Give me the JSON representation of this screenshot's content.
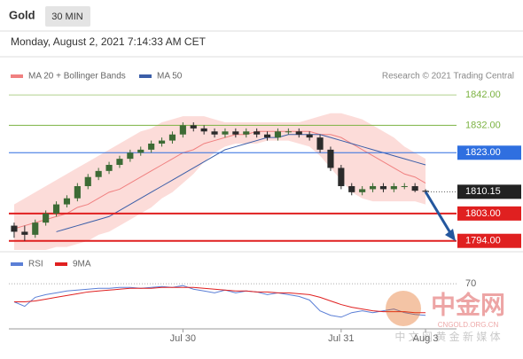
{
  "chart_data": {
    "type": "candlestick",
    "title": "Gold",
    "timeframe": "30 MIN",
    "subtitle": "Monday, August 2, 2021 7:14:33 AM CET",
    "credit": "Research © 2021 Trading Central",
    "watermark": [
      "中金网",
      "CNGOLD.ORG.CN",
      "中 文 网 黄 金 新 媒 体"
    ],
    "up_color": "#3d6b35",
    "down_color": "#2b2b2b",
    "categories": [
      null,
      null,
      null,
      null,
      null,
      null,
      null,
      null,
      null,
      null,
      null,
      null,
      null,
      null,
      null,
      null,
      "Jul 30",
      null,
      null,
      null,
      null,
      null,
      null,
      null,
      null,
      null,
      null,
      null,
      null,
      null,
      null,
      "Jul 31",
      null,
      null,
      null,
      null,
      null,
      null,
      null,
      "Aug 3"
    ],
    "open": [
      1799,
      1797,
      1796,
      1800,
      1803,
      1806,
      1808,
      1812,
      1815,
      1817,
      1819,
      1821,
      1823,
      1824,
      1826,
      1827,
      1829,
      1832,
      1831,
      1830,
      1829,
      1830,
      1829,
      1830,
      1829,
      1828,
      1830,
      1830,
      1829,
      1828,
      1824,
      1818,
      1812,
      1810,
      1811,
      1812,
      1811,
      1812,
      1812,
      1810.5
    ],
    "high": [
      1800,
      1799,
      1801,
      1804,
      1807,
      1809,
      1813,
      1816,
      1818,
      1820,
      1822,
      1824,
      1825,
      1827,
      1828,
      1830,
      1833,
      1833,
      1832,
      1831,
      1831,
      1831,
      1831,
      1831,
      1830,
      1831,
      1831,
      1831,
      1830,
      1829,
      1825,
      1819,
      1813,
      1812,
      1813,
      1813,
      1813,
      1813,
      1813,
      1811
    ],
    "low": [
      1795,
      1794,
      1795,
      1799,
      1802,
      1805,
      1807,
      1811,
      1814,
      1816,
      1818,
      1820,
      1822,
      1823,
      1825,
      1826,
      1828,
      1830,
      1829,
      1828,
      1828,
      1828,
      1828,
      1828,
      1827,
      1827,
      1829,
      1828,
      1827,
      1823,
      1817,
      1811,
      1809,
      1809,
      1810,
      1810,
      1810,
      1811,
      1810,
      1809.5
    ],
    "close": [
      1797,
      1796,
      1800,
      1803,
      1806,
      1808,
      1812,
      1815,
      1817,
      1819,
      1821,
      1823,
      1824,
      1826,
      1827,
      1829,
      1832,
      1831,
      1830,
      1829,
      1830,
      1829,
      1830,
      1829,
      1828,
      1830,
      1830,
      1829,
      1828,
      1824,
      1818,
      1812,
      1810,
      1811,
      1812,
      1811,
      1812,
      1812,
      1810.5,
      1810.15
    ],
    "series": [
      {
        "name": "MA 20 + Bollinger Bands",
        "color": "#f08080",
        "values": [
          1798,
          1799,
          1800,
          1801,
          1802,
          1803,
          1805,
          1806,
          1808,
          1810,
          1811,
          1813,
          1815,
          1817,
          1819,
          1821,
          1823,
          1824,
          1826,
          1827,
          1828,
          1829,
          1829,
          1830,
          1830,
          1830,
          1830,
          1830,
          1830,
          1829,
          1829,
          1828,
          1826,
          1824,
          1822,
          1820,
          1818,
          1816,
          1815,
          1813
        ],
        "upper": [
          1806,
          1808,
          1810,
          1812,
          1814,
          1816,
          1818,
          1820,
          1822,
          1824,
          1826,
          1828,
          1830,
          1831,
          1833,
          1834,
          1835,
          1835,
          1835,
          1834,
          1833,
          1833,
          1833,
          1833,
          1833,
          1833,
          1833,
          1833,
          1834,
          1835,
          1836,
          1836,
          1835,
          1834,
          1832,
          1830,
          1828,
          1825,
          1823,
          1821
        ],
        "lower": [
          1791,
          1791,
          1791,
          1791,
          1792,
          1792,
          1793,
          1794,
          1796,
          1797,
          1799,
          1801,
          1803,
          1805,
          1808,
          1810,
          1813,
          1816,
          1820,
          1823,
          1825,
          1826,
          1826,
          1826,
          1827,
          1827,
          1827,
          1826,
          1825,
          1822,
          1818,
          1814,
          1810,
          1808,
          1807,
          1807,
          1807,
          1807,
          1807,
          1806
        ],
        "band_color": "#fbd3d0"
      },
      {
        "name": "MA 50",
        "color": "#3b5ea8",
        "values": [
          null,
          null,
          null,
          null,
          1797,
          1798,
          1799,
          1800,
          1801,
          1802,
          1804,
          1806,
          1808,
          1810,
          1812,
          1814,
          1816,
          1818,
          1820,
          1822,
          1824,
          1825,
          1826,
          1827,
          1828,
          1828,
          1829,
          1829,
          1829,
          1829,
          1828,
          1827,
          1826,
          1825,
          1824,
          1823,
          1822,
          1821,
          1820,
          1819
        ]
      }
    ],
    "ylim": [
      1791,
      1847
    ],
    "levels": [
      {
        "value": 1842,
        "label": "1842.00",
        "color": "#7cb342",
        "boxed": false
      },
      {
        "value": 1832,
        "label": "1832.00",
        "color": "#7cb342",
        "boxed": false
      },
      {
        "value": 1823,
        "label": "1823.00",
        "color": "#2f6fe0",
        "boxed": true
      },
      {
        "value": 1810.15,
        "label": "1810.15",
        "color": "#222222",
        "boxed": true
      },
      {
        "value": 1803,
        "label": "1803.00",
        "color": "#e02020",
        "boxed": true
      },
      {
        "value": 1794,
        "label": "1794.00",
        "color": "#e02020",
        "boxed": true
      }
    ],
    "rsi": {
      "ylim": [
        20,
        80
      ],
      "yticks": [
        70
      ],
      "series": [
        {
          "name": "RSI",
          "color": "#5b7fd6",
          "values": [
            50,
            45,
            55,
            58,
            60,
            62,
            63,
            64,
            65,
            65,
            66,
            66,
            65,
            66,
            67,
            66,
            68,
            64,
            62,
            60,
            63,
            60,
            62,
            61,
            58,
            60,
            58,
            56,
            52,
            40,
            35,
            33,
            38,
            40,
            38,
            40,
            42,
            38,
            36,
            35
          ]
        },
        {
          "name": "9MA",
          "color": "#e02020",
          "values": [
            50,
            50,
            51,
            53,
            55,
            57,
            59,
            61,
            62,
            63,
            64,
            65,
            65,
            65,
            66,
            66,
            66,
            66,
            65,
            64,
            63,
            62,
            62,
            61,
            61,
            60,
            60,
            59,
            58,
            55,
            51,
            47,
            44,
            42,
            40,
            39,
            39,
            39,
            38,
            38
          ]
        }
      ]
    }
  }
}
